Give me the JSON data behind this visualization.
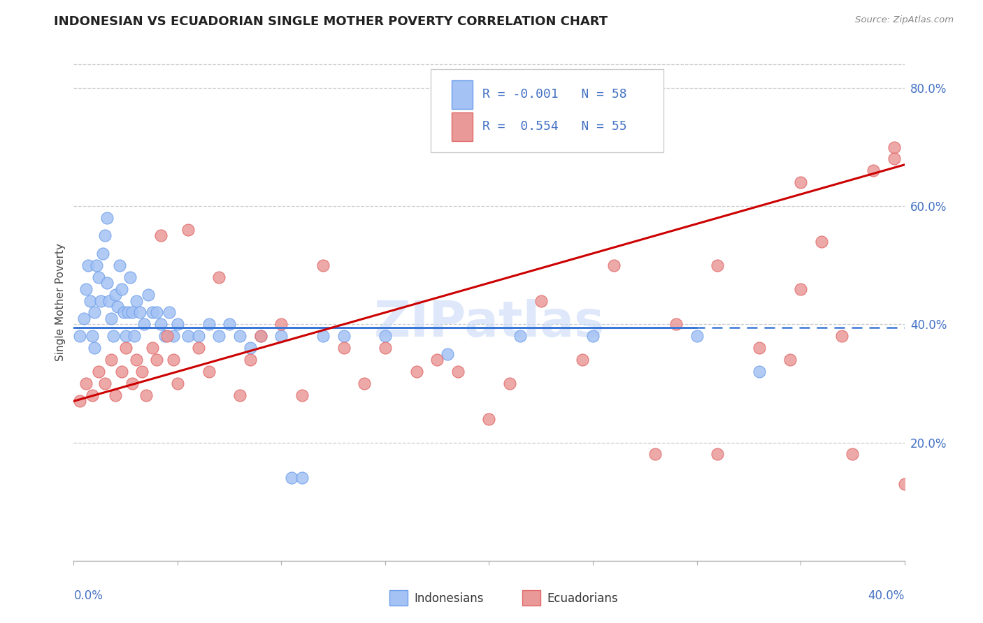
{
  "title": "INDONESIAN VS ECUADORIAN SINGLE MOTHER POVERTY CORRELATION CHART",
  "source": "Source: ZipAtlas.com",
  "blue_scatter_color": "#a4c2f4",
  "pink_scatter_color": "#ea9999",
  "blue_edge_color": "#6d9eeb",
  "pink_edge_color": "#e06666",
  "blue_line_color": "#3c78d8",
  "pink_line_color": "#cc0000",
  "watermark_text": "ZIPatlas",
  "watermark_color": "#c9daf8",
  "x_min": 0.0,
  "x_max": 0.4,
  "y_min": 0.0,
  "y_max": 0.875,
  "yticks_right": [
    0.2,
    0.4,
    0.6,
    0.8
  ],
  "r_blue": -0.001,
  "n_blue": 58,
  "r_pink": 0.554,
  "n_pink": 55,
  "blue_intercept": 0.395,
  "blue_slope": 0.0,
  "pink_intercept": 0.27,
  "pink_slope": 1.0,
  "indo_x": [
    0.003,
    0.005,
    0.006,
    0.007,
    0.008,
    0.009,
    0.01,
    0.01,
    0.011,
    0.012,
    0.013,
    0.014,
    0.015,
    0.016,
    0.016,
    0.017,
    0.018,
    0.019,
    0.02,
    0.021,
    0.022,
    0.023,
    0.024,
    0.025,
    0.026,
    0.027,
    0.028,
    0.029,
    0.03,
    0.032,
    0.034,
    0.036,
    0.038,
    0.04,
    0.042,
    0.044,
    0.046,
    0.048,
    0.05,
    0.055,
    0.06,
    0.065,
    0.07,
    0.075,
    0.08,
    0.085,
    0.09,
    0.1,
    0.105,
    0.11,
    0.12,
    0.13,
    0.15,
    0.18,
    0.215,
    0.25,
    0.3,
    0.33
  ],
  "indo_y": [
    0.38,
    0.41,
    0.46,
    0.5,
    0.44,
    0.38,
    0.36,
    0.42,
    0.5,
    0.48,
    0.44,
    0.52,
    0.55,
    0.47,
    0.58,
    0.44,
    0.41,
    0.38,
    0.45,
    0.43,
    0.5,
    0.46,
    0.42,
    0.38,
    0.42,
    0.48,
    0.42,
    0.38,
    0.44,
    0.42,
    0.4,
    0.45,
    0.42,
    0.42,
    0.4,
    0.38,
    0.42,
    0.38,
    0.4,
    0.38,
    0.38,
    0.4,
    0.38,
    0.4,
    0.38,
    0.36,
    0.38,
    0.38,
    0.14,
    0.14,
    0.38,
    0.38,
    0.38,
    0.35,
    0.38,
    0.38,
    0.38,
    0.32
  ],
  "ecua_x": [
    0.003,
    0.006,
    0.009,
    0.012,
    0.015,
    0.018,
    0.02,
    0.023,
    0.025,
    0.028,
    0.03,
    0.033,
    0.035,
    0.038,
    0.04,
    0.042,
    0.045,
    0.048,
    0.05,
    0.055,
    0.06,
    0.065,
    0.07,
    0.08,
    0.085,
    0.09,
    0.1,
    0.11,
    0.12,
    0.13,
    0.14,
    0.15,
    0.165,
    0.175,
    0.185,
    0.2,
    0.21,
    0.225,
    0.245,
    0.26,
    0.29,
    0.31,
    0.33,
    0.345,
    0.35,
    0.36,
    0.37,
    0.385,
    0.395,
    0.4,
    0.28,
    0.31,
    0.35,
    0.375,
    0.395
  ],
  "ecua_y": [
    0.27,
    0.3,
    0.28,
    0.32,
    0.3,
    0.34,
    0.28,
    0.32,
    0.36,
    0.3,
    0.34,
    0.32,
    0.28,
    0.36,
    0.34,
    0.55,
    0.38,
    0.34,
    0.3,
    0.56,
    0.36,
    0.32,
    0.48,
    0.28,
    0.34,
    0.38,
    0.4,
    0.28,
    0.5,
    0.36,
    0.3,
    0.36,
    0.32,
    0.34,
    0.32,
    0.24,
    0.3,
    0.44,
    0.34,
    0.5,
    0.4,
    0.5,
    0.36,
    0.34,
    0.46,
    0.54,
    0.38,
    0.66,
    0.7,
    0.13,
    0.18,
    0.18,
    0.64,
    0.18,
    0.68
  ]
}
